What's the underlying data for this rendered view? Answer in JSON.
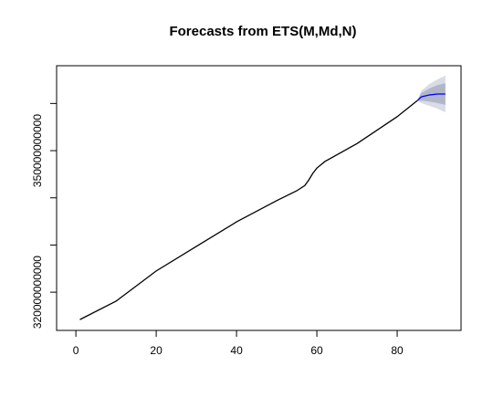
{
  "chart_data": {
    "type": "forecast",
    "title": "Forecasts from ETS(M,Md,N)",
    "xlim": [
      -4.8,
      95.9
    ],
    "ylim": [
      311900000000,
      368000000000
    ],
    "xticks": [
      0,
      20,
      40,
      60,
      80
    ],
    "yticks": [
      {
        "value": 320000000000,
        "label": "320000000000"
      },
      {
        "value": 330000000000,
        "label": null
      },
      {
        "value": 340000000000,
        "label": null
      },
      {
        "value": 350000000000,
        "label": "350000000000"
      },
      {
        "value": 360000000000,
        "label": null
      }
    ],
    "history": {
      "color": "#000000",
      "x": [
        1,
        10,
        20,
        30,
        40,
        50,
        55,
        57,
        58,
        59,
        60,
        62,
        70,
        80,
        85
      ],
      "values": [
        314200000000,
        318100000000,
        324500000000,
        329700000000,
        334900000000,
        339400000000,
        341500000000,
        342600000000,
        343800000000,
        345200000000,
        346300000000,
        347700000000,
        351500000000,
        357200000000,
        360600000000
      ]
    },
    "forecast": {
      "color": "#0000ff",
      "color80": "#b1b7c9",
      "color95": "#d8dce5",
      "x": [
        85,
        86,
        88,
        90,
        92
      ],
      "values": [
        360600000000,
        361400000000,
        361800000000,
        362000000000,
        362000000000
      ],
      "lower80": [
        360600000000,
        360600000000,
        360400000000,
        360100000000,
        359700000000
      ],
      "upper80": [
        360600000000,
        362200000000,
        363200000000,
        363900000000,
        364300000000
      ],
      "lower95": [
        360600000000,
        360100000000,
        359500000000,
        358900000000,
        358100000000
      ],
      "upper95": [
        360600000000,
        362700000000,
        364100000000,
        365100000000,
        365900000000
      ]
    }
  }
}
